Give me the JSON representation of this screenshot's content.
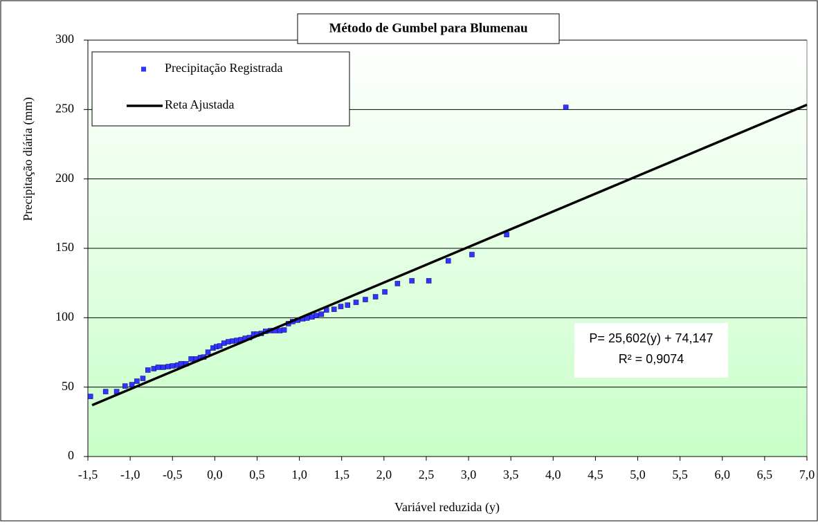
{
  "chart_data": {
    "type": "scatter",
    "title": "Método de Gumbel para Blumenau",
    "x_label": "Variável reduzida (y)",
    "y_label": "Precipitação diária  (mm)",
    "annotations": [
      "P= 25,602(y) + 74,147",
      "R² = 0,9074"
    ],
    "xlim": [
      -1.5,
      7.0
    ],
    "ylim": [
      0,
      300
    ],
    "xticks": [
      {
        "value": -1.5,
        "label": "-1,5"
      },
      {
        "value": -1.0,
        "label": "-1,0"
      },
      {
        "value": -0.5,
        "label": "-0,5"
      },
      {
        "value": 0.0,
        "label": "0,0"
      },
      {
        "value": 0.5,
        "label": "0,5"
      },
      {
        "value": 1.0,
        "label": "1,0"
      },
      {
        "value": 1.5,
        "label": "1,5"
      },
      {
        "value": 2.0,
        "label": "2,0"
      },
      {
        "value": 2.5,
        "label": "2,5"
      },
      {
        "value": 3.0,
        "label": "3,0"
      },
      {
        "value": 3.5,
        "label": "3,5"
      },
      {
        "value": 4.0,
        "label": "4,0"
      },
      {
        "value": 4.5,
        "label": "4,5"
      },
      {
        "value": 5.0,
        "label": "5,0"
      },
      {
        "value": 5.5,
        "label": "5,5"
      },
      {
        "value": 6.0,
        "label": "6,0"
      },
      {
        "value": 6.5,
        "label": "6,5"
      },
      {
        "value": 7.0,
        "label": "7,0"
      }
    ],
    "yticks": [
      0,
      50,
      100,
      150,
      200,
      250,
      300
    ],
    "grid": true,
    "legend": "upper left",
    "series": [
      {
        "name": "Precipitação Registrada",
        "color": "#3333ff",
        "style": "markers",
        "x": [
          -1.47,
          -1.29,
          -1.16,
          -1.06,
          -0.98,
          -0.92,
          -0.85,
          -0.79,
          -0.72,
          -0.67,
          -0.61,
          -0.55,
          -0.5,
          -0.44,
          -0.4,
          -0.34,
          -0.28,
          -0.22,
          -0.17,
          -0.13,
          -0.08,
          -0.02,
          0.02,
          0.06,
          0.11,
          0.16,
          0.21,
          0.26,
          0.31,
          0.36,
          0.41,
          0.46,
          0.5,
          0.55,
          0.6,
          0.66,
          0.71,
          0.77,
          0.82,
          0.87,
          0.92,
          0.98,
          1.04,
          1.09,
          1.15,
          1.2,
          1.26,
          1.32,
          1.41,
          1.49,
          1.57,
          1.67,
          1.78,
          1.9,
          2.01,
          2.16,
          2.33,
          2.53,
          2.76,
          3.04,
          3.45,
          4.15
        ],
        "values": [
          43.3,
          46.8,
          46.8,
          50.8,
          51.8,
          54.3,
          56.3,
          62.3,
          63.3,
          64.3,
          64.3,
          64.8,
          65.3,
          65.8,
          66.8,
          66.8,
          70.3,
          70.3,
          71.3,
          71.7,
          75.2,
          78.2,
          79.2,
          79.7,
          81.7,
          82.7,
          83.2,
          83.7,
          84.2,
          85.2,
          85.7,
          88.2,
          88.2,
          88.7,
          90.2,
          90.7,
          90.7,
          90.7,
          91.2,
          95.7,
          97.2,
          98.2,
          99.2,
          99.7,
          100.6,
          101.6,
          102.6,
          105.6,
          106.1,
          108.1,
          109.1,
          111.1,
          113.1,
          115.1,
          118.6,
          124.6,
          126.6,
          126.6,
          141.0,
          145.5,
          159.9,
          251.6
        ]
      },
      {
        "name": "Reta Ajustada",
        "color": "#000000",
        "style": "line",
        "x": [
          -1.45,
          7.0
        ],
        "values": [
          37.0,
          253.4
        ]
      }
    ]
  }
}
